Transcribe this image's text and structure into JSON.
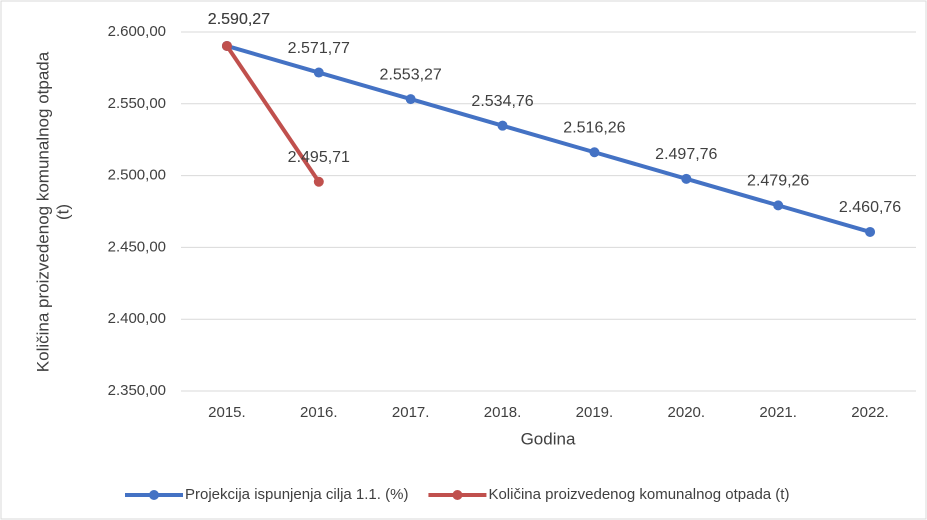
{
  "chart_data": {
    "type": "line",
    "ylabel": [
      "Količina proizvedenog komunalnog otpada",
      "(t)"
    ],
    "xlabel": "Godina",
    "categories": [
      "2015.",
      "2016.",
      "2017.",
      "2018.",
      "2019.",
      "2020.",
      "2021.",
      "2022."
    ],
    "series": [
      {
        "name": "Projekcija ispunjenja cilja 1.1. (%)",
        "color": "#4472c4",
        "values": [
          2590.27,
          2571.77,
          2553.27,
          2534.76,
          2516.26,
          2497.76,
          2479.26,
          2460.76
        ],
        "value_labels": [
          "2.590,27",
          "2.571,77",
          "2.553,27",
          "2.534,76",
          "2.516,26",
          "2.497,76",
          "2.479,26",
          "2.460,76"
        ]
      },
      {
        "name": "Količina proizvedenog komunalnog otpada (t)",
        "color": "#c0504d",
        "values": [
          2590.27,
          2495.71,
          null,
          null,
          null,
          null,
          null,
          null
        ],
        "value_labels": [
          "2.590,27",
          "2.495,71",
          null,
          null,
          null,
          null,
          null,
          null
        ]
      }
    ],
    "ylim": [
      2350,
      2600
    ],
    "yticks": [
      {
        "value": 2350,
        "label": "2.350,00"
      },
      {
        "value": 2400,
        "label": "2.400,00"
      },
      {
        "value": 2450,
        "label": "2.450,00"
      },
      {
        "value": 2500,
        "label": "2.500,00"
      },
      {
        "value": 2550,
        "label": "2.550,00"
      },
      {
        "value": 2600,
        "label": "2.600,00"
      }
    ],
    "grid": true,
    "legend": "bottom"
  }
}
